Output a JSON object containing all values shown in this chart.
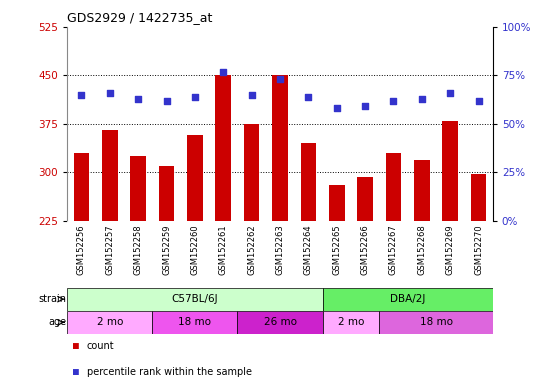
{
  "title": "GDS2929 / 1422735_at",
  "samples": [
    "GSM152256",
    "GSM152257",
    "GSM152258",
    "GSM152259",
    "GSM152260",
    "GSM152261",
    "GSM152262",
    "GSM152263",
    "GSM152264",
    "GSM152265",
    "GSM152266",
    "GSM152267",
    "GSM152268",
    "GSM152269",
    "GSM152270"
  ],
  "counts": [
    330,
    365,
    325,
    310,
    358,
    450,
    375,
    450,
    345,
    280,
    293,
    330,
    320,
    380,
    298
  ],
  "percentile_ranks": [
    65,
    66,
    63,
    62,
    64,
    77,
    65,
    73,
    64,
    58,
    59,
    62,
    63,
    66,
    62
  ],
  "ylim_left": [
    225,
    525
  ],
  "ylim_right": [
    0,
    100
  ],
  "yticks_left": [
    225,
    300,
    375,
    450,
    525
  ],
  "yticks_right": [
    0,
    25,
    50,
    75,
    100
  ],
  "bar_color": "#cc0000",
  "dot_color": "#3333cc",
  "strain_groups": [
    {
      "label": "C57BL/6J",
      "start": 0,
      "end": 9,
      "color": "#ccffcc"
    },
    {
      "label": "DBA/2J",
      "start": 9,
      "end": 15,
      "color": "#66ee66"
    }
  ],
  "age_colors": [
    "#ffaaff",
    "#ee55ee",
    "#cc22cc",
    "#ffaaff",
    "#dd66dd"
  ],
  "age_groups": [
    {
      "label": "2 mo",
      "start": 0,
      "end": 3
    },
    {
      "label": "18 mo",
      "start": 3,
      "end": 6
    },
    {
      "label": "26 mo",
      "start": 6,
      "end": 9
    },
    {
      "label": "2 mo",
      "start": 9,
      "end": 11
    },
    {
      "label": "18 mo",
      "start": 11,
      "end": 15
    }
  ],
  "legend_count_color": "#cc0000",
  "legend_dot_color": "#3333cc",
  "bg_color": "#ffffff",
  "plot_bg_color": "#ffffff",
  "tick_label_color_left": "#cc0000",
  "tick_label_color_right": "#3333cc",
  "xticklabel_bg": "#cccccc",
  "gridline_color": "#000000",
  "gridline_style": ":"
}
